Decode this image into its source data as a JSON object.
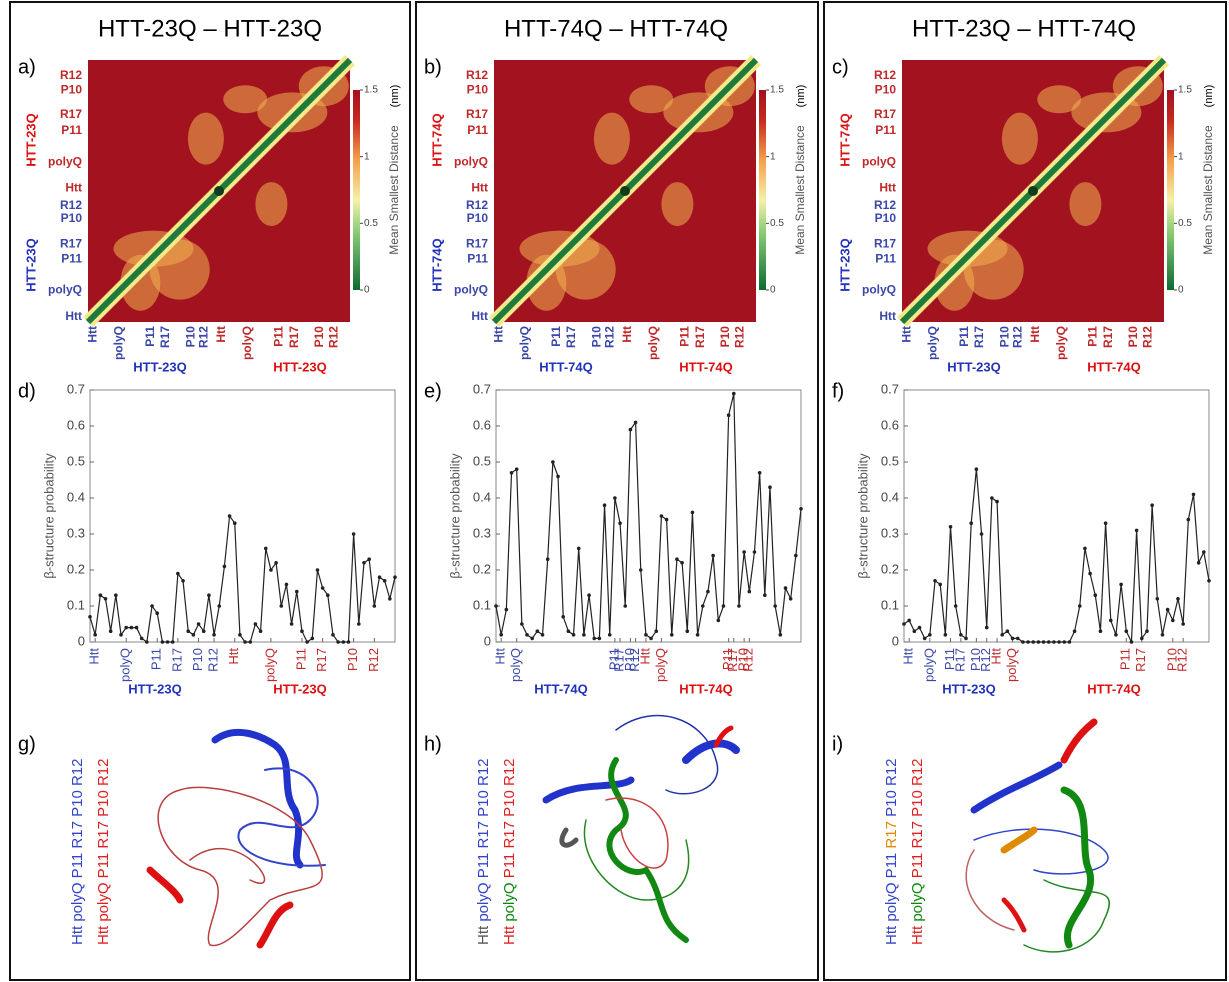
{
  "columns": [
    {
      "title": "HTT-23Q – HTT-23Q",
      "heatmap": {
        "letter": "a)",
        "row_labels": [
          "R12",
          "P10",
          "R17",
          "P11",
          "polyQ",
          "Htt",
          "R12",
          "P10",
          "R17",
          "P11",
          "polyQ",
          "Htt"
        ],
        "col_labels": [
          "Htt",
          "polyQ",
          "P11",
          "R17",
          "P10",
          "R12",
          "Htt",
          "polyQ",
          "P11",
          "R17",
          "P10",
          "R12"
        ],
        "side_labels": [
          "HTT-23Q",
          "HTT-23Q"
        ],
        "bottom_labels": [
          "HTT-23Q",
          "HTT-23Q"
        ],
        "colorbar": {
          "label": "Mean Smallest Distance",
          "unit": "(nm)",
          "lim": [
            0,
            1.5
          ],
          "ticks": [
            0,
            0.5,
            1,
            1.5
          ]
        }
      },
      "profile": {
        "letter": "d)",
        "type": "line",
        "ylabel": "β-structure probability",
        "ylim": [
          0,
          0.7
        ],
        "yticks": [
          0,
          0.1,
          0.2,
          0.3,
          0.4,
          0.5,
          0.6,
          0.7
        ],
        "xlim": [
          0,
          59
        ],
        "xticks": [
          {
            "value": 1,
            "label": "Htt"
          },
          {
            "value": 7,
            "label": "polyQ"
          },
          {
            "value": 13,
            "label": "P11"
          },
          {
            "value": 17,
            "label": "R17"
          },
          {
            "value": 21,
            "label": "P10"
          },
          {
            "value": 24,
            "label": "R12"
          },
          {
            "value": 28,
            "label": "Htt"
          },
          {
            "value": 35,
            "label": "polyQ"
          },
          {
            "value": 41,
            "label": "P11"
          },
          {
            "value": 45,
            "label": "R17"
          },
          {
            "value": 51,
            "label": "P10"
          },
          {
            "value": 55,
            "label": "R12"
          }
        ],
        "values": [
          0.07,
          0.02,
          0.13,
          0.12,
          0.03,
          0.13,
          0.02,
          0.04,
          0.04,
          0.04,
          0.01,
          0,
          0.1,
          0.08,
          0,
          0,
          0,
          0.19,
          0.17,
          0.03,
          0.02,
          0.05,
          0.03,
          0.13,
          0.02,
          0.1,
          0.21,
          0.35,
          0.33,
          0.02,
          0,
          0,
          0.05,
          0.03,
          0.26,
          0.2,
          0.22,
          0.1,
          0.16,
          0.05,
          0.14,
          0.03,
          0,
          0.01,
          0.2,
          0.15,
          0.13,
          0.02,
          0,
          0,
          0,
          0.3,
          0.05,
          0.22,
          0.23,
          0.1,
          0.18,
          0.17,
          0.12,
          0.18
        ],
        "bottom_labels": [
          "HTT-23Q",
          "HTT-23Q"
        ]
      },
      "structure": {
        "letter": "g)",
        "legend": [
          [
            {
              "text": "Htt polyQ P11 R17 P10 R12",
              "color": "#3344cc"
            }
          ],
          [
            {
              "text": "Htt polyQ P11 R17 P10 R12",
              "color": "#e02020"
            }
          ]
        ]
      }
    },
    {
      "title": "HTT-74Q – HTT-74Q",
      "heatmap": {
        "letter": "b)",
        "row_labels": [
          "R12",
          "P10",
          "R17",
          "P11",
          "polyQ",
          "Htt",
          "R12",
          "P10",
          "R17",
          "P11",
          "polyQ",
          "Htt"
        ],
        "col_labels": [
          "Htt",
          "polyQ",
          "P11",
          "R17",
          "P10",
          "R12",
          "Htt",
          "polyQ",
          "P11",
          "R17",
          "P10",
          "R12"
        ],
        "side_labels": [
          "HTT-74Q",
          "HTT-74Q"
        ],
        "bottom_labels": [
          "HTT-74Q",
          "HTT-74Q"
        ],
        "colorbar": {
          "label": "Mean Smallest Distance",
          "unit": "(nm)",
          "lim": [
            0,
            1.5
          ],
          "ticks": [
            0,
            0.5,
            1,
            1.5
          ]
        }
      },
      "profile": {
        "letter": "e)",
        "type": "line",
        "ylabel": "β-structure probability",
        "ylim": [
          0,
          0.7
        ],
        "yticks": [
          0,
          0.1,
          0.2,
          0.3,
          0.4,
          0.5,
          0.6,
          0.7
        ],
        "xlim": [
          0,
          59
        ],
        "xticks": [
          {
            "value": 1,
            "label": "Htt"
          },
          {
            "value": 4,
            "label": "polyQ"
          },
          {
            "value": 23,
            "label": "P11"
          },
          {
            "value": 24,
            "label": "R17"
          },
          {
            "value": 26,
            "label": "P10"
          },
          {
            "value": 27,
            "label": "R12"
          },
          {
            "value": 29,
            "label": "Htt"
          },
          {
            "value": 32,
            "label": "polyQ"
          },
          {
            "value": 45,
            "label": "P11"
          },
          {
            "value": 46,
            "label": "R17"
          },
          {
            "value": 48,
            "label": "P10"
          },
          {
            "value": 49,
            "label": "R12"
          }
        ],
        "values": [
          0.1,
          0.02,
          0.09,
          0.47,
          0.48,
          0.05,
          0.02,
          0.01,
          0.03,
          0.02,
          0.23,
          0.5,
          0.46,
          0.07,
          0.03,
          0.02,
          0.26,
          0.02,
          0.13,
          0.01,
          0.01,
          0.38,
          0.02,
          0.4,
          0.33,
          0.1,
          0.59,
          0.61,
          0.2,
          0.02,
          0.01,
          0.03,
          0.35,
          0.34,
          0.02,
          0.23,
          0.22,
          0.03,
          0.36,
          0.02,
          0.1,
          0.14,
          0.24,
          0.06,
          0.1,
          0.63,
          0.69,
          0.1,
          0.25,
          0.14,
          0.25,
          0.47,
          0.13,
          0.43,
          0.1,
          0.02,
          0.15,
          0.12,
          0.24,
          0.37
        ],
        "bottom_labels": [
          "HTT-74Q",
          "HTT-74Q"
        ]
      },
      "structure": {
        "letter": "h)",
        "legend": [
          [
            {
              "text": "Htt",
              "color": "#555555"
            },
            {
              "text": "polyQ P11 R17 P10 R12",
              "color": "#3344cc"
            }
          ],
          [
            {
              "text": "Htt",
              "color": "#e02020"
            },
            {
              "text": "polyQ",
              "color": "#118811"
            },
            {
              "text": "P11 R17 P10 R12",
              "color": "#e02020"
            }
          ]
        ]
      }
    },
    {
      "title": "HTT-23Q – HTT-74Q",
      "heatmap": {
        "letter": "c)",
        "row_labels": [
          "R12",
          "P10",
          "R17",
          "P11",
          "polyQ",
          "Htt",
          "R12",
          "P10",
          "R17",
          "P11",
          "polyQ",
          "Htt"
        ],
        "col_labels": [
          "Htt",
          "polyQ",
          "P11",
          "R17",
          "P10",
          "R12",
          "Htt",
          "polyQ",
          "P11",
          "R17",
          "P10",
          "R12"
        ],
        "side_labels": [
          "HTT-74Q",
          "HTT-23Q"
        ],
        "bottom_labels": [
          "HTT-23Q",
          "HTT-74Q"
        ],
        "colorbar": {
          "label": "Mean Smallest Distance",
          "unit": "(nm)",
          "lim": [
            0,
            1.5
          ],
          "ticks": [
            0,
            0.5,
            1,
            1.5
          ]
        }
      },
      "profile": {
        "letter": "f)",
        "type": "line",
        "ylabel": "β-structure probability",
        "ylim": [
          0,
          0.7
        ],
        "yticks": [
          0,
          0.1,
          0.2,
          0.3,
          0.4,
          0.5,
          0.6,
          0.7
        ],
        "xlim": [
          0,
          59
        ],
        "xticks": [
          {
            "value": 1,
            "label": "Htt"
          },
          {
            "value": 5,
            "label": "polyQ"
          },
          {
            "value": 9,
            "label": "P11"
          },
          {
            "value": 11,
            "label": "R17"
          },
          {
            "value": 14,
            "label": "P10"
          },
          {
            "value": 16,
            "label": "R12"
          },
          {
            "value": 18,
            "label": "Htt"
          },
          {
            "value": 21,
            "label": "polyQ"
          },
          {
            "value": 43,
            "label": "P11"
          },
          {
            "value": 46,
            "label": "R17"
          },
          {
            "value": 52,
            "label": "P10"
          },
          {
            "value": 54,
            "label": "R12"
          }
        ],
        "values": [
          0.05,
          0.06,
          0.03,
          0.04,
          0.01,
          0.02,
          0.17,
          0.16,
          0.02,
          0.32,
          0.1,
          0.02,
          0.01,
          0.33,
          0.48,
          0.3,
          0.04,
          0.4,
          0.39,
          0.02,
          0.03,
          0.01,
          0.01,
          0,
          0,
          0,
          0,
          0,
          0,
          0,
          0,
          0,
          0,
          0.03,
          0.1,
          0.26,
          0.19,
          0.13,
          0.03,
          0.33,
          0.06,
          0.02,
          0.16,
          0.03,
          0,
          0.31,
          0.01,
          0.03,
          0.38,
          0.12,
          0.02,
          0.09,
          0.06,
          0.12,
          0.05,
          0.34,
          0.41,
          0.22,
          0.25,
          0.17
        ],
        "bottom_labels": [
          "HTT-23Q",
          "HTT-74Q"
        ]
      },
      "structure": {
        "letter": "i)",
        "legend": [
          [
            {
              "text": "Htt polyQ P11",
              "color": "#3344cc"
            },
            {
              "text": "R17",
              "color": "#e08a00"
            },
            {
              "text": "P10 R12",
              "color": "#3344cc"
            }
          ],
          [
            {
              "text": "Htt",
              "color": "#e02020"
            },
            {
              "text": "polyQ",
              "color": "#118811"
            },
            {
              "text": "P11 R17 P10 R12",
              "color": "#e02020"
            }
          ]
        ]
      }
    }
  ]
}
